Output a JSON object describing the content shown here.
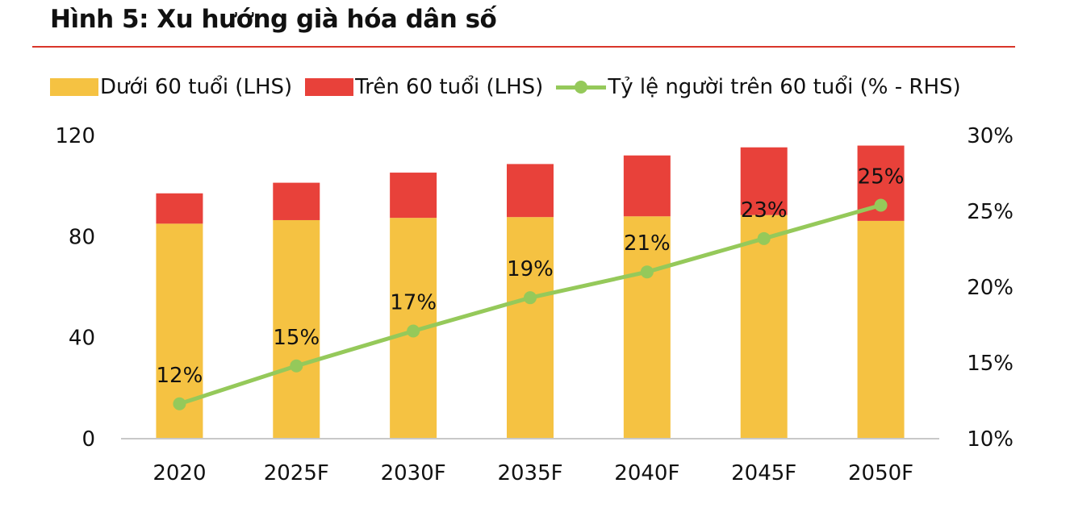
{
  "title": "Hình 5: Xu hướng già hóa dân số",
  "chart_data": {
    "type": "bar",
    "stacked": true,
    "categories": [
      "2020",
      "2025F",
      "2030F",
      "2035F",
      "2040F",
      "2045F",
      "2050F"
    ],
    "series": [
      {
        "name": "Dưới 60 tuổi (LHS)",
        "type": "bar",
        "axis": "left",
        "color": "#f5c242",
        "values": [
          85.1,
          86.5,
          87.4,
          87.7,
          88.0,
          88.5,
          86.2
        ]
      },
      {
        "name": "Trên 60 tuổi (LHS)",
        "type": "bar",
        "axis": "left",
        "color": "#e8413a",
        "values": [
          12.0,
          14.8,
          17.9,
          21.0,
          24.1,
          26.8,
          29.8
        ]
      },
      {
        "name": "Tỷ lệ người trên 60 tuổi (% - RHS)",
        "type": "line",
        "axis": "right",
        "color": "#95c95a",
        "values": [
          12.3,
          14.8,
          17.1,
          19.3,
          21.0,
          23.2,
          25.4
        ],
        "data_labels": [
          "12%",
          "15%",
          "17%",
          "19%",
          "21%",
          "23%",
          "25%"
        ]
      }
    ],
    "left_axis": {
      "ylim": [
        0,
        120
      ],
      "ticks": [
        0,
        40,
        80,
        120
      ],
      "tick_labels": [
        "0",
        "40",
        "80",
        "120"
      ]
    },
    "right_axis": {
      "ylim": [
        10,
        30
      ],
      "ticks": [
        10,
        15,
        20,
        25,
        30
      ],
      "tick_labels": [
        "10%",
        "15%",
        "20%",
        "25%",
        "30%"
      ]
    },
    "grid": false,
    "legend_position": "top"
  }
}
